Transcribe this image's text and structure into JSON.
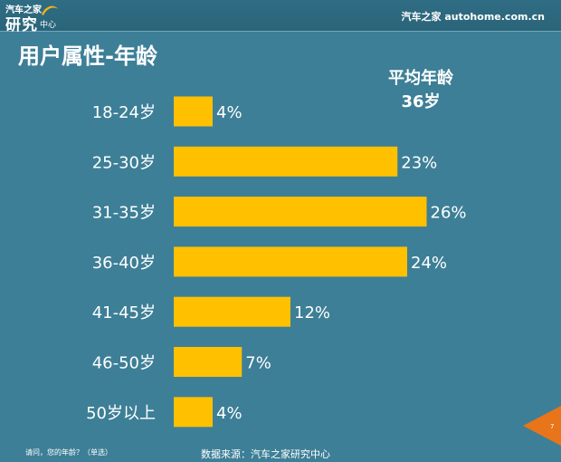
{
  "header": {
    "logo_top": "汽车之家",
    "logo_main": "研究",
    "logo_sub": "中心",
    "brand": "汽车之家 autohome.com.cn"
  },
  "title": "用户属性-年龄",
  "average": {
    "label": "平均年龄",
    "value": "36岁"
  },
  "chart_data": {
    "type": "bar",
    "orientation": "horizontal",
    "categories": [
      "18-24岁",
      "25-30岁",
      "31-35岁",
      "36-40岁",
      "41-45岁",
      "46-50岁",
      "50岁以上"
    ],
    "values": [
      4,
      23,
      26,
      24,
      12,
      7,
      4
    ],
    "value_labels": [
      "4%",
      "23%",
      "26%",
      "24%",
      "12%",
      "7%",
      "4%"
    ],
    "unit": "%",
    "title": "用户属性-年龄",
    "xlabel": "",
    "ylabel": "",
    "bar_color": "#ffc000",
    "grid": false,
    "legend": "none"
  },
  "footer": {
    "question": "请问，您的年龄？（单选）",
    "source": "数据来源：汽车之家研究中心",
    "page": "7"
  },
  "colors": {
    "background": "#3d7f97",
    "bar": "#ffc000",
    "page_tab": "#e8751a"
  }
}
